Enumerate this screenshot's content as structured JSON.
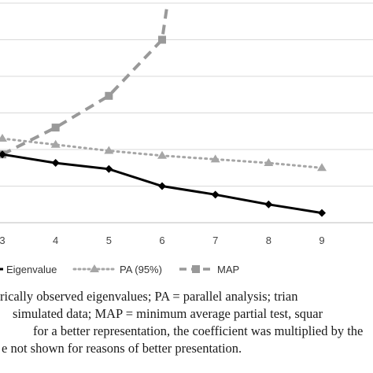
{
  "chart_data": {
    "type": "line",
    "x": [
      3,
      4,
      5,
      6,
      7,
      8,
      9
    ],
    "xlim": [
      2.5,
      9.5
    ],
    "ylim": [
      0,
      9
    ],
    "grid": true,
    "legend_position": "bottom",
    "series": [
      {
        "name": "Eigenvalue",
        "x": [
          3,
          4,
          5,
          6,
          7,
          8,
          9
        ],
        "values": [
          2.8,
          2.45,
          2.2,
          1.5,
          1.15,
          0.75,
          0.4
        ],
        "color": "#000000",
        "style": "solid",
        "marker": "diamond"
      },
      {
        "name": "PA (95%)",
        "x": [
          3,
          4,
          5,
          6,
          7,
          8,
          9
        ],
        "values": [
          3.45,
          3.2,
          2.95,
          2.75,
          2.6,
          2.45,
          2.25
        ],
        "color": "#a6a6a6",
        "style": "dotted",
        "marker": "triangle"
      },
      {
        "name": "MAP",
        "x": [
          3,
          4,
          5,
          6,
          6.1
        ],
        "values": [
          2.8,
          3.9,
          5.2,
          7.5,
          9.0
        ],
        "color": "#999999",
        "style": "dashed",
        "marker": "square"
      }
    ]
  },
  "caption": {
    "line1": "rically observed eigenvalues; PA = parallel analysis; trian",
    "line2": "simulated data; MAP = minimum average partial test, squar",
    "line3": "for a better representation, the coefficient was multiplied by the",
    "line4": "e not shown for reasons of better presentation."
  }
}
